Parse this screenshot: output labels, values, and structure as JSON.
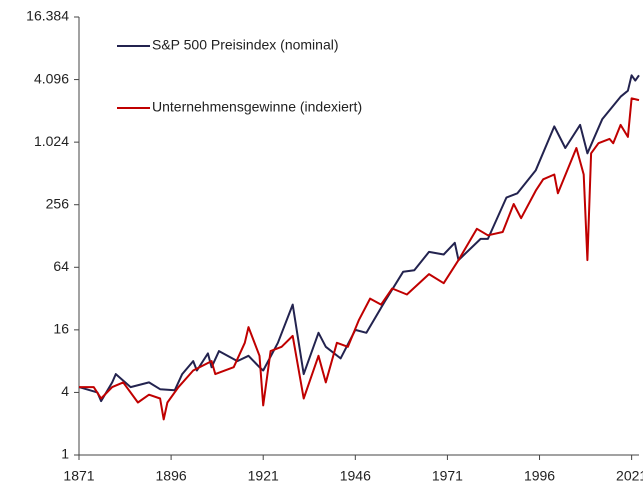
{
  "chart_data": {
    "type": "line",
    "log_scale_y": true,
    "legend": "upper left",
    "xlim": [
      1871,
      2023
    ],
    "xticks": [
      1871,
      1896,
      1921,
      1946,
      1971,
      1996,
      2021
    ],
    "ylim": [
      1,
      16384
    ],
    "yticks": [
      1,
      4,
      16,
      64,
      256,
      {
        "value": 1024,
        "label": "1.024"
      },
      {
        "value": 4096,
        "label": "4.096"
      },
      {
        "value": 16384,
        "label": "16.384"
      }
    ],
    "series": [
      {
        "name": "S&P 500 Preisindex (nominal)",
        "color": "#23234f",
        "x": [
          1871,
          1876,
          1877,
          1880,
          1881,
          1885,
          1890,
          1893,
          1897,
          1899,
          1902,
          1903,
          1906,
          1907,
          1909,
          1914,
          1917,
          1920,
          1921,
          1925,
          1929,
          1932,
          1936,
          1938,
          1942,
          1946,
          1949,
          1954,
          1959,
          1962,
          1966,
          1970,
          1973,
          1974,
          1980,
          1982,
          1987,
          1990,
          1995,
          2000,
          2003,
          2007,
          2009,
          2013,
          2018,
          2020,
          2021,
          2022,
          2023
        ],
        "values": [
          4.5,
          4,
          3.3,
          5,
          6,
          4.5,
          5,
          4.3,
          4.2,
          6,
          8,
          6.5,
          9.5,
          7,
          10,
          8,
          9,
          7,
          6.5,
          12,
          28,
          6,
          15,
          11,
          8.5,
          16,
          15,
          30,
          58,
          60,
          90,
          85,
          110,
          75,
          120,
          120,
          300,
          330,
          550,
          1450,
          900,
          1500,
          800,
          1700,
          2800,
          3200,
          4500,
          4000,
          4500
        ]
      },
      {
        "name": "Unternehmensgewinne (indexiert)",
        "color": "#c00000",
        "x": [
          1871,
          1875,
          1877,
          1880,
          1883,
          1887,
          1890,
          1893,
          1894,
          1895,
          1898,
          1902,
          1907,
          1908,
          1913,
          1916,
          1917,
          1920,
          1921,
          1923,
          1926,
          1929,
          1932,
          1936,
          1938,
          1941,
          1944,
          1947,
          1950,
          1953,
          1956,
          1960,
          1966,
          1970,
          1974,
          1979,
          1982,
          1986,
          1989,
          1991,
          1995,
          1997,
          2000,
          2001,
          2006,
          2008,
          2009,
          2010,
          2012,
          2015,
          2016,
          2018,
          2020,
          2021,
          2023
        ],
        "values": [
          4.5,
          4.5,
          3.5,
          4.5,
          5,
          3.2,
          3.8,
          3.5,
          2.2,
          3.2,
          4.5,
          6.5,
          8,
          6,
          7,
          12,
          17,
          9,
          3,
          10,
          11,
          14,
          3.5,
          9,
          5,
          12,
          11,
          20,
          32,
          28,
          40,
          35,
          55,
          45,
          75,
          150,
          130,
          140,
          260,
          190,
          350,
          450,
          500,
          330,
          900,
          500,
          75,
          800,
          1000,
          1100,
          1000,
          1500,
          1150,
          2700,
          2600
        ]
      }
    ]
  }
}
